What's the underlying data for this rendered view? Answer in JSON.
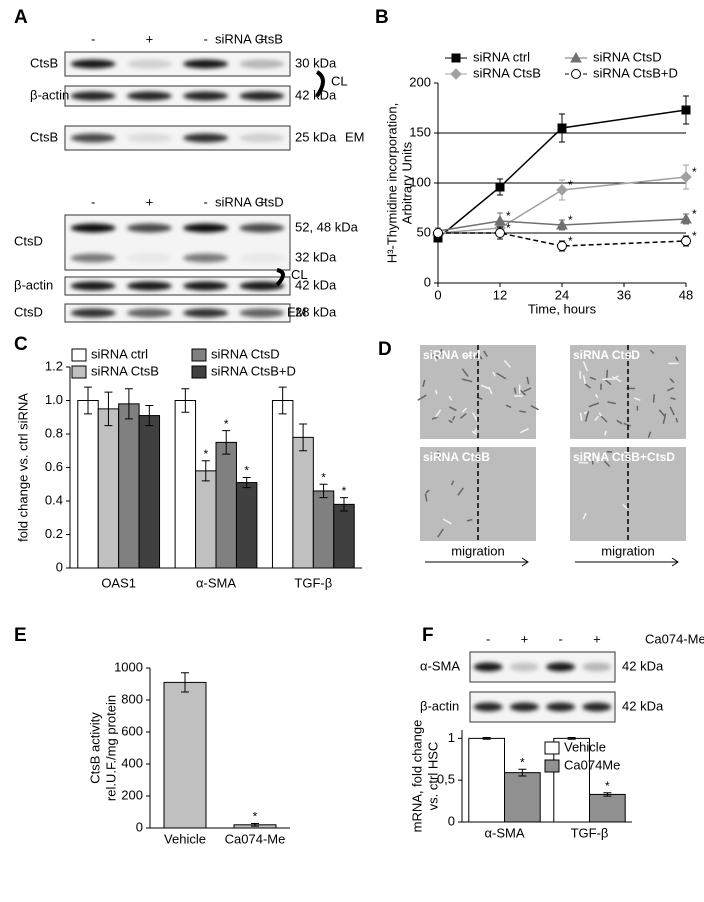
{
  "blots": [
    {
      "panel_label": "A",
      "treatment": "siRNA CtsB",
      "signs": [
        "-",
        "+",
        "-",
        "+"
      ],
      "rows": [
        {
          "label": "CtsB",
          "mw": "30 kDa"
        },
        {
          "label": "β-actin",
          "mw": "42 kDa"
        },
        {
          "label": "CtsB",
          "mw": "25 kDa"
        }
      ],
      "bracket": "CL",
      "em": "EM"
    },
    {
      "treatment": "siRNA CtsD",
      "signs": [
        "-",
        "+",
        "-",
        "+"
      ],
      "rows": [
        {
          "label": "CtsD",
          "mw": "52, 48 kDa"
        },
        {
          "mw": "32 kDa"
        },
        {
          "label": "β-actin",
          "mw": "42 kDa"
        },
        {
          "label": "CtsD",
          "mw": "28 kDa"
        }
      ],
      "bracket": "CL",
      "em": "EM"
    },
    {
      "treatment": "Ca074-Me",
      "signs": [
        "-",
        "+",
        "-",
        "+"
      ],
      "rows": [
        {
          "label": "α-SMA",
          "mw": "42 kDa"
        },
        {
          "label": "β-actin",
          "mw": "42 kDa"
        }
      ]
    }
  ],
  "micrographs": {
    "panel_label": "D",
    "images": [
      "siRNA ctrl",
      "siRNA CtsD",
      "siRNA CtsB",
      "siRNA CtsB+CtsD"
    ],
    "arrows": [
      "migration",
      "migration"
    ]
  },
  "chart_data": [
    {
      "panel_label": "B",
      "type": "line",
      "ylabel": [
        "H³-Thymidine incorporation,",
        "Arbitrary Units"
      ],
      "xlabel": "Time, hours",
      "x": [
        0,
        12,
        24,
        48
      ],
      "xlim": [
        0,
        48
      ],
      "xticks": [
        0,
        12,
        24,
        36,
        48
      ],
      "ylim": [
        0,
        200
      ],
      "yticks": [
        0,
        50,
        100,
        150,
        200
      ],
      "grid": true,
      "series": [
        {
          "name": "siRNA ctrl",
          "color": "#000000",
          "marker": "square",
          "line_style": "solid",
          "values": [
            45,
            96,
            155,
            173
          ],
          "errors": [
            4,
            8,
            14,
            14
          ]
        },
        {
          "name": "siRNA CtsB",
          "color": "#a0a0a0",
          "marker": "diamond",
          "line_style": "solid",
          "values": [
            50,
            55,
            93,
            106
          ],
          "errors": [
            3,
            6,
            10,
            12
          ],
          "stars": [
            null,
            null,
            "*",
            "*"
          ]
        },
        {
          "name": "siRNA CtsD",
          "color": "#707070",
          "marker": "triangle",
          "line_style": "solid",
          "values": [
            52,
            62,
            58,
            64
          ],
          "errors": [
            3,
            8,
            5,
            5
          ],
          "stars": [
            null,
            "*",
            "*",
            "*"
          ]
        },
        {
          "name": "siRNA CtsB+D",
          "color": "#000000",
          "marker": "open-circle",
          "line_style": "dashed",
          "values": [
            50,
            50,
            37,
            42
          ],
          "errors": [
            3,
            6,
            5,
            5
          ],
          "stars": [
            null,
            "*",
            "*",
            "*"
          ]
        }
      ]
    },
    {
      "panel_label": "C",
      "type": "bar",
      "ylabel": "fold change vs. ctrl siRNA",
      "categories": [
        "OAS1",
        "α-SMA",
        "TGF-β"
      ],
      "ylim": [
        0,
        1.2
      ],
      "yticks": [
        0,
        0.2,
        0.4,
        0.6,
        0.8,
        {
          "value": 1,
          "label": "1.0"
        },
        1.2
      ],
      "series": [
        {
          "name": "siRNA ctrl",
          "color": "#ffffff",
          "values": [
            1,
            1,
            1
          ],
          "errors": [
            0.08,
            0.07,
            0.08
          ]
        },
        {
          "name": "siRNA CtsB",
          "color": "#c0c0c0",
          "values": [
            0.95,
            0.58,
            0.78
          ],
          "errors": [
            0.1,
            0.06,
            0.08
          ],
          "stars": [
            null,
            "*",
            null
          ]
        },
        {
          "name": "siRNA CtsD",
          "color": "#808080",
          "values": [
            0.98,
            0.75,
            0.46
          ],
          "errors": [
            0.09,
            0.07,
            0.04
          ],
          "stars": [
            null,
            "*",
            "*"
          ]
        },
        {
          "name": "siRNA CtsB+D",
          "color": "#404040",
          "values": [
            0.91,
            0.51,
            0.38
          ],
          "errors": [
            0.06,
            0.03,
            0.04
          ],
          "stars": [
            null,
            "*",
            "*"
          ]
        }
      ]
    },
    {
      "panel_label": "E",
      "type": "bar",
      "ylabel": [
        "CtsB activity",
        "rel.U.F./mg protein"
      ],
      "categories": [
        "Vehicle",
        "Ca074-Me"
      ],
      "values": [
        910,
        20
      ],
      "errors": [
        60,
        8
      ],
      "stars": [
        null,
        "*"
      ],
      "color": "#c0c0c0",
      "ylim": [
        0,
        1000
      ],
      "yticks": [
        0,
        200,
        400,
        600,
        800,
        1000
      ]
    },
    {
      "panel_label": "F",
      "type": "bar",
      "ylabel": [
        "mRNA, fold change",
        "vs. ctrl HSC"
      ],
      "categories": [
        "α-SMA",
        "TGF-β"
      ],
      "ylim": [
        0,
        1.1
      ],
      "yticks": [
        0,
        {
          "value": 0.5,
          "label": "0,5"
        },
        1
      ],
      "series": [
        {
          "name": "Vehicle",
          "color": "#ffffff",
          "values": [
            1,
            1
          ],
          "errors": [
            0.01,
            0.01
          ]
        },
        {
          "name": "Ca074Me",
          "color": "#909090",
          "values": [
            0.59,
            0.33
          ],
          "errors": [
            0.04,
            0.02
          ],
          "stars": [
            "*",
            "*"
          ]
        }
      ]
    }
  ]
}
